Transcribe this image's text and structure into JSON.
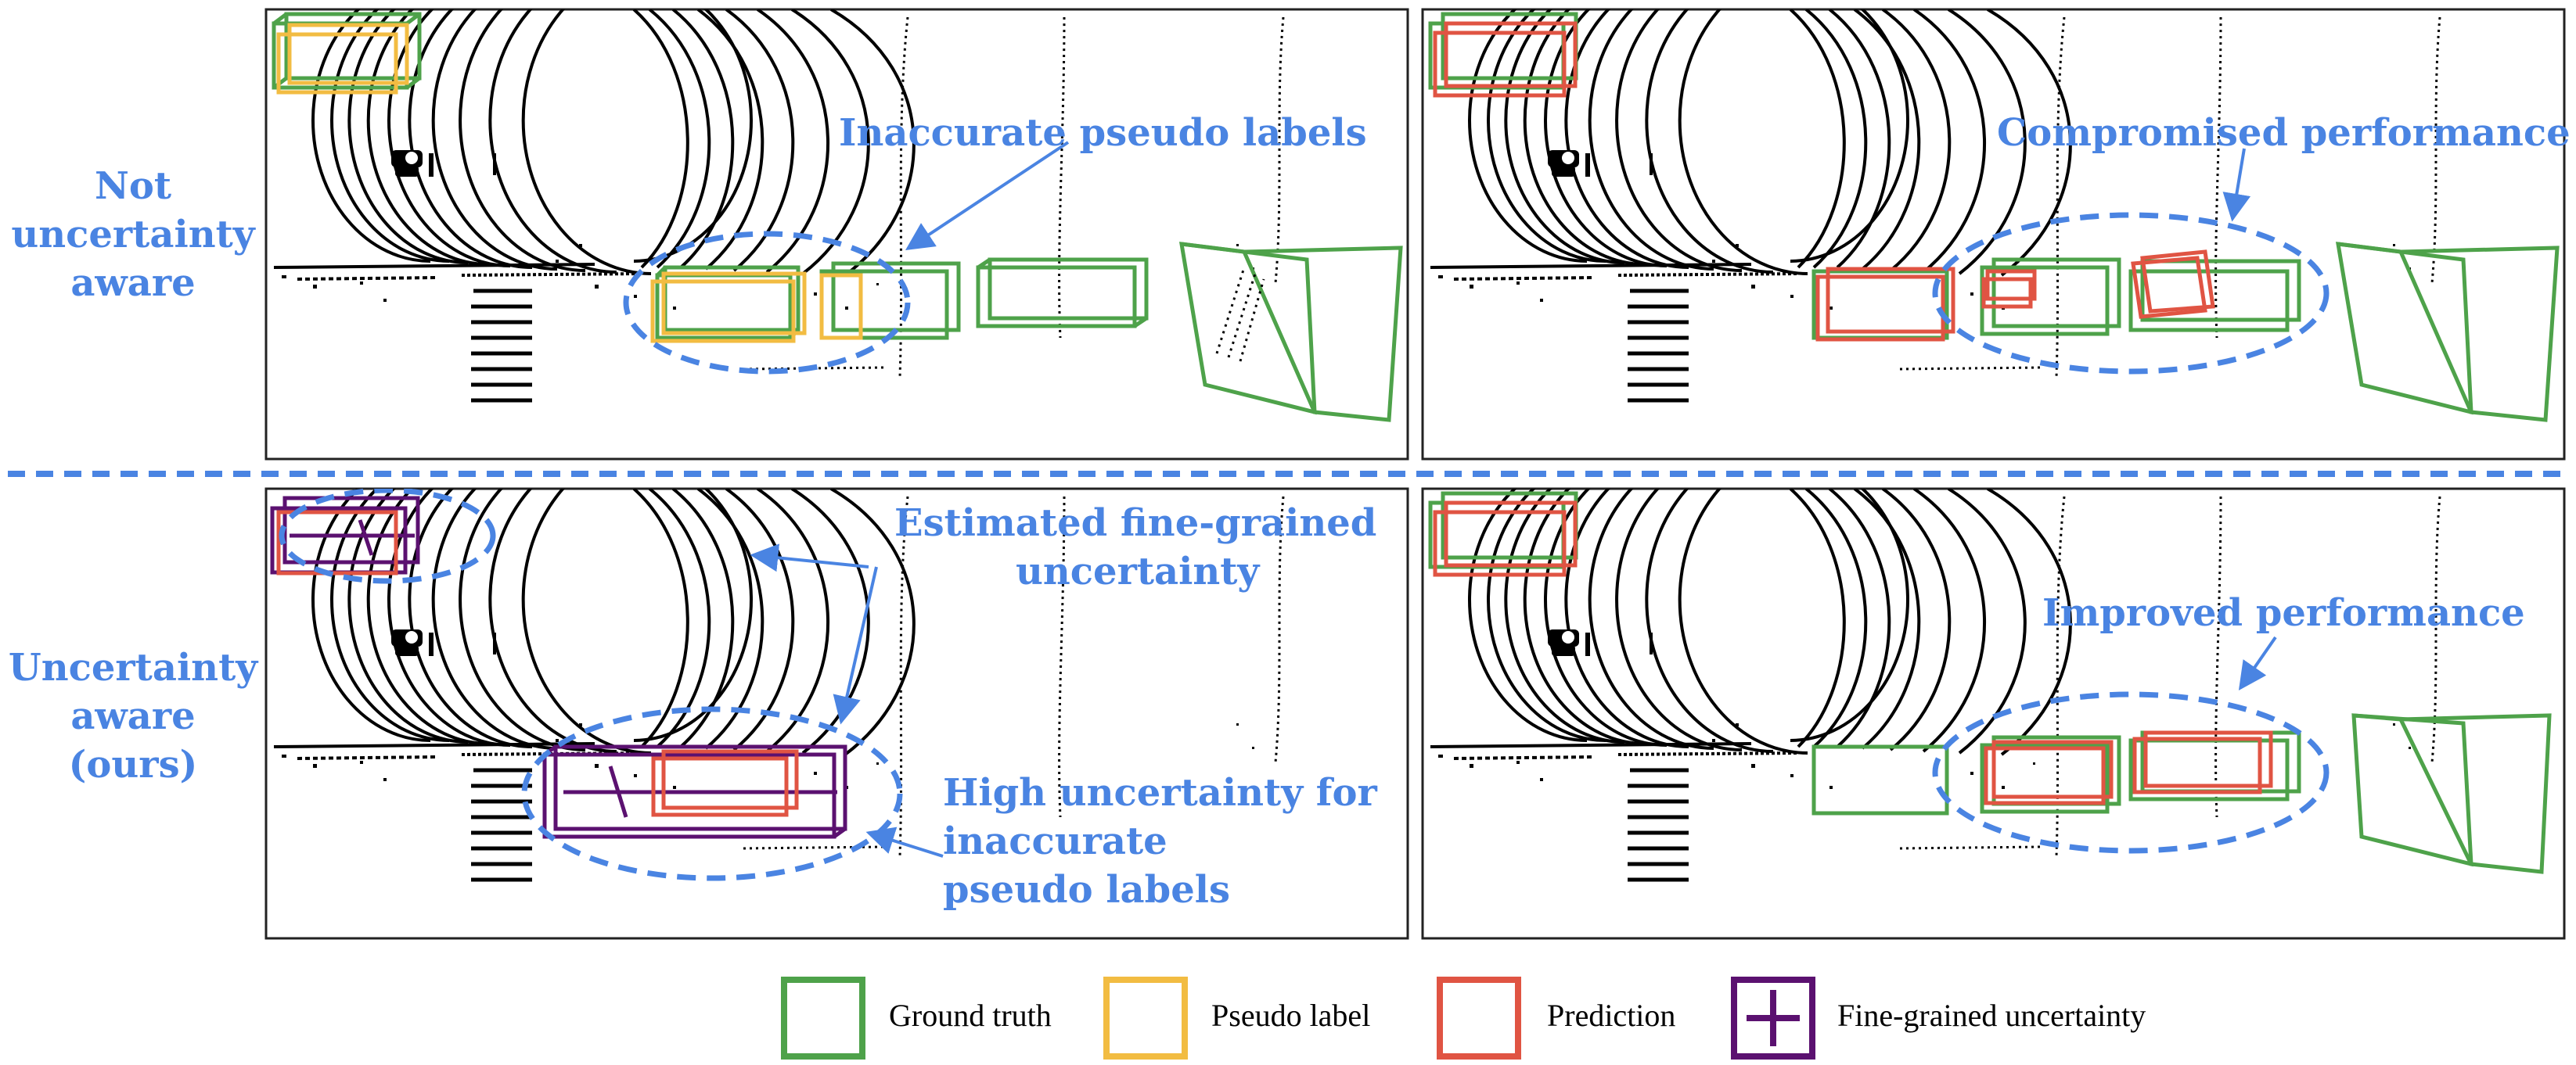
{
  "row_labels": {
    "top": [
      "Not",
      "uncertainty",
      "aware"
    ],
    "bottom": [
      "Uncertainty",
      "aware",
      "(ours)"
    ]
  },
  "annotations": {
    "inaccurate": "Inaccurate pseudo labels",
    "compromised": "Compromised performance",
    "estimated": [
      "Estimated fine-grained",
      "uncertainty"
    ],
    "improved": "Improved performance",
    "high": [
      "High uncertainty for",
      "inaccurate",
      "pseudo labels"
    ]
  },
  "legend": [
    {
      "label": "Ground truth",
      "color": "#4ea24a",
      "icon": "ground-truth-box-icon"
    },
    {
      "label": "Pseudo label",
      "color": "#f2bc42",
      "icon": "pseudo-label-box-icon"
    },
    {
      "label": "Prediction",
      "color": "#e05443",
      "icon": "prediction-box-icon"
    },
    {
      "label": "Fine-grained uncertainty",
      "color": "#5b1170",
      "icon": "uncertainty-cross-icon"
    }
  ],
  "colors": {
    "annotation": "#4a84e2",
    "ground_truth": "#4ea24a",
    "pseudo_label": "#f2bc42",
    "prediction": "#e05443",
    "uncertainty": "#5b1170",
    "lidar": "#000000"
  }
}
